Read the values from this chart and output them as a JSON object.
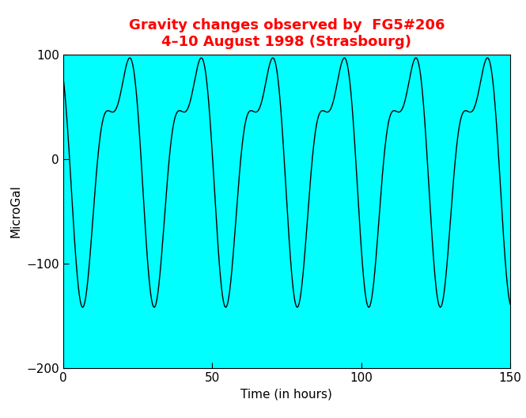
{
  "title_line1": "Gravity changes observed by  FG5#206",
  "title_line2": "4–10 August 1998 (Strasbourg)",
  "title_color": "#ff0000",
  "xlabel": "Time (in hours)",
  "ylabel": "MicroGal",
  "xlim": [
    0,
    150
  ],
  "ylim": [
    -200,
    100
  ],
  "xticks": [
    0,
    50,
    100,
    150
  ],
  "yticks": [
    -200,
    -100,
    0,
    100
  ],
  "bg_color": "#00ffff",
  "line_color": "#000000",
  "line_width": 1.0,
  "t_start": 0,
  "t_end": 150,
  "n_points": 5000,
  "A1": 100,
  "omega1": 0.2618,
  "phi1": 2.8,
  "A2": 45,
  "omega2": 0.5236,
  "phi2": 1.5,
  "title_fontsize": 13,
  "label_fontsize": 11,
  "fig_width": 6.65,
  "fig_height": 5.28,
  "fig_dpi": 100
}
